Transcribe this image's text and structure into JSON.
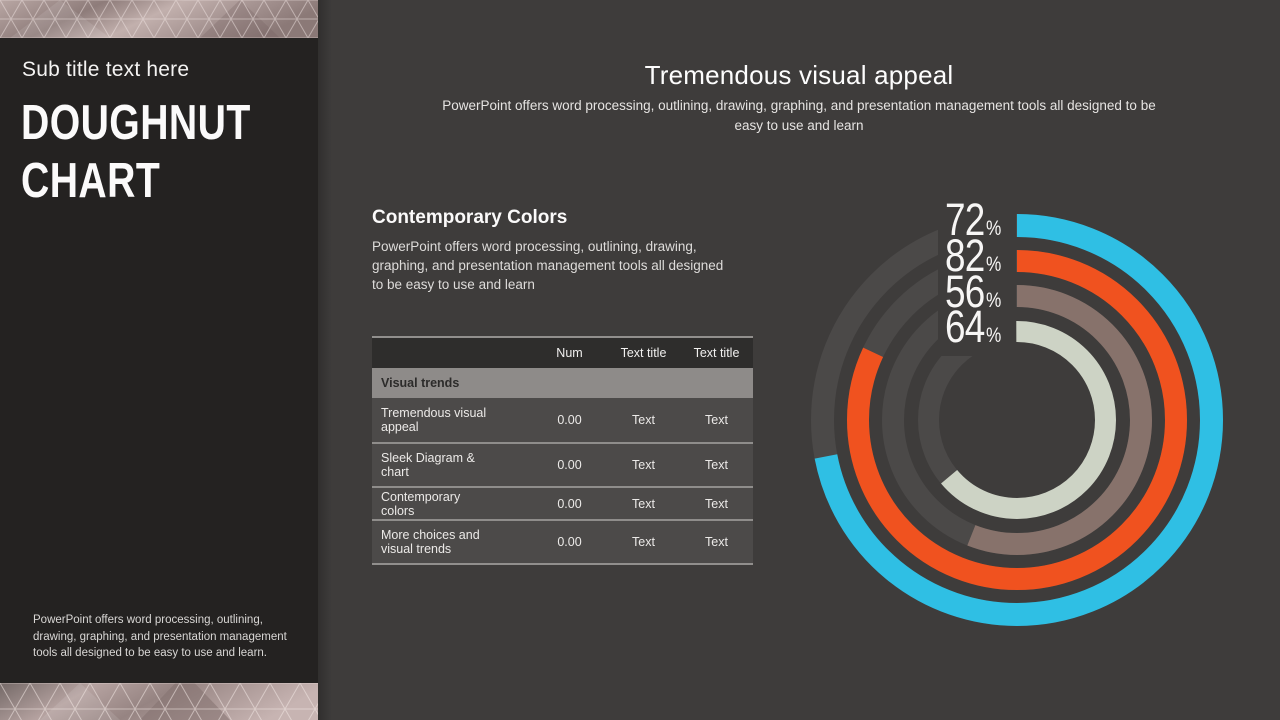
{
  "sidebar": {
    "subtitle": "Sub title text here",
    "title_line1": "DOUGHNUT",
    "title_line2": "CHART",
    "footer": "PowerPoint offers word processing, outlining, drawing, graphing, and presentation management tools all designed to be easy to use and learn."
  },
  "main": {
    "heading": "Tremendous visual appeal",
    "subheading": "PowerPoint offers word processing, outlining, drawing, graphing, and presentation management tools all designed to be easy to use and learn",
    "section_title": "Contemporary Colors",
    "section_body": "PowerPoint offers word processing, outlining, drawing, graphing, and presentation management tools all designed to be easy to use and learn"
  },
  "table": {
    "headers": [
      "",
      "Num",
      "Text title",
      "Text title"
    ],
    "group_label": "Visual trends",
    "rows": [
      {
        "label": "Tremendous visual appeal",
        "num": "0.00",
        "text1": "Text",
        "text2": "Text"
      },
      {
        "label": "Sleek Diagram & chart",
        "num": "0.00",
        "text1": "Text",
        "text2": "Text"
      },
      {
        "label": "Contemporary colors",
        "num": "0.00",
        "text1": "Text",
        "text2": "Text"
      },
      {
        "label": "More choices and visual trends",
        "num": "0.00",
        "text1": "Text",
        "text2": "Text"
      }
    ]
  },
  "chart_data": {
    "type": "doughnut",
    "title": "",
    "unit": "%",
    "percent_sign": "%",
    "max": 100,
    "start_angle": "top",
    "direction": "clockwise",
    "track_color": "#4b4948",
    "background_color": "#3e3c3b",
    "series": [
      {
        "value": 72,
        "color": "#2fbfe4"
      },
      {
        "value": 82,
        "color": "#f0521f"
      },
      {
        "value": 56,
        "color": "#87726b"
      },
      {
        "value": 64,
        "color": "#cdd3c5"
      }
    ]
  }
}
